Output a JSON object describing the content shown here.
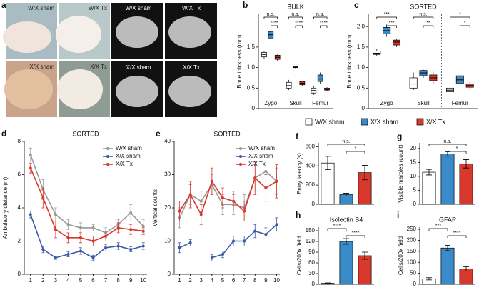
{
  "panel_labels": [
    "a",
    "b",
    "c",
    "d",
    "e",
    "f",
    "g",
    "h",
    "i"
  ],
  "photos": {
    "labels": [
      "W/X sham",
      "W/X Tx",
      "X/X sham",
      "X/X Tx"
    ]
  },
  "ct": {
    "labels": [
      "W/X sham",
      "W/X Tx",
      "X/X sham",
      "X/X Tx"
    ]
  },
  "chart_data": [
    {
      "type": "box",
      "title": "BULK",
      "y_label": "Bone thickness (mm)",
      "categories": [
        "Zygo",
        "Skull",
        "Femur"
      ],
      "ylim": [
        0,
        2.3
      ],
      "yticks": [
        0,
        {
          "value": 0.5,
          "label": "0.5"
        },
        {
          "value": 1,
          "label": "1.0"
        },
        {
          "value": 1.5,
          "label": "1.5"
        }
      ],
      "annotations": [
        "n.s.",
        "****",
        "n.s.",
        "****",
        "n.s.",
        "****"
      ],
      "series": [
        {
          "name": "W/X sham",
          "color": "#ffffff",
          "values": [
            {
              "min": 1.2,
              "q1": 1.26,
              "median": 1.32,
              "q3": 1.37,
              "max": 1.4
            },
            {
              "min": 0.45,
              "q1": 0.5,
              "median": 0.56,
              "q3": 0.64,
              "max": 0.7
            },
            {
              "min": 0.33,
              "q1": 0.38,
              "median": 0.44,
              "q3": 0.5,
              "max": 0.56
            }
          ]
        },
        {
          "name": "X/X sham",
          "color": "#3a8bc9",
          "values": [
            {
              "min": 1.65,
              "q1": 1.72,
              "median": 1.8,
              "q3": 1.88,
              "max": 1.92
            },
            {
              "min": 0.98,
              "q1": 1.0,
              "median": 1.01,
              "q3": 1.03,
              "max": 1.04
            },
            {
              "min": 0.6,
              "q1": 0.66,
              "median": 0.72,
              "q3": 0.82,
              "max": 0.88
            }
          ]
        },
        {
          "name": "X/X Tx",
          "color": "#d9382c",
          "values": [
            {
              "min": 1.15,
              "q1": 1.2,
              "median": 1.25,
              "q3": 1.3,
              "max": 1.32
            },
            {
              "min": 0.55,
              "q1": 0.58,
              "median": 0.62,
              "q3": 0.66,
              "max": 0.68
            },
            {
              "min": 0.43,
              "q1": 0.45,
              "median": 0.47,
              "q3": 0.5,
              "max": 0.52
            }
          ]
        }
      ]
    },
    {
      "type": "box",
      "title": "SORTED",
      "y_label": "Bone thickness (mm)",
      "categories": [
        "Zygo",
        "Skull",
        "Femur"
      ],
      "ylim": [
        0,
        2.3
      ],
      "yticks": [
        0,
        {
          "value": 0.5,
          "label": "0.5"
        },
        {
          "value": 1,
          "label": "1.0"
        },
        {
          "value": 1.5,
          "label": "1.5"
        },
        {
          "value": 2,
          "label": "2.0"
        }
      ],
      "annotations": [
        "***",
        "***",
        "n.s.",
        "**",
        "*",
        "*"
      ],
      "series": [
        {
          "name": "W/X sham",
          "color": "#ffffff",
          "values": [
            {
              "min": 1.28,
              "q1": 1.32,
              "median": 1.35,
              "q3": 1.4,
              "max": 1.45
            },
            {
              "min": 0.45,
              "q1": 0.5,
              "median": 0.6,
              "q3": 0.75,
              "max": 0.88
            },
            {
              "min": 0.38,
              "q1": 0.41,
              "median": 0.45,
              "q3": 0.5,
              "max": 0.55
            }
          ]
        },
        {
          "name": "X/X sham",
          "color": "#3a8bc9",
          "values": [
            {
              "min": 1.75,
              "q1": 1.82,
              "median": 1.9,
              "q3": 1.98,
              "max": 2.05
            },
            {
              "min": 0.75,
              "q1": 0.8,
              "median": 0.87,
              "q3": 0.93,
              "max": 0.95
            },
            {
              "min": 0.55,
              "q1": 0.62,
              "median": 0.7,
              "q3": 0.8,
              "max": 0.88
            }
          ]
        },
        {
          "name": "X/X Tx",
          "color": "#d9382c",
          "values": [
            {
              "min": 1.5,
              "q1": 1.55,
              "median": 1.62,
              "q3": 1.67,
              "max": 1.7
            },
            {
              "min": 0.6,
              "q1": 0.68,
              "median": 0.75,
              "q3": 0.82,
              "max": 0.9
            },
            {
              "min": 0.48,
              "q1": 0.52,
              "median": 0.56,
              "q3": 0.6,
              "max": 0.65
            }
          ]
        }
      ]
    },
    {
      "type": "line",
      "title": "SORTED",
      "y_label": "Ambulatory distance (m)",
      "x": [
        1,
        2,
        3,
        4,
        5,
        6,
        7,
        8,
        9,
        10
      ],
      "xlim": [
        0.5,
        10.3
      ],
      "xticks": [
        1,
        2,
        3,
        4,
        5,
        6,
        7,
        8,
        9,
        10
      ],
      "ylim": [
        0,
        8
      ],
      "yticks": [
        0,
        2,
        4,
        6,
        8
      ],
      "series": [
        {
          "name": "W/X sham",
          "color": "#999999",
          "values": [
            7.2,
            5.1,
            3.6,
            3.0,
            2.8,
            2.8,
            2.5,
            3.0,
            3.7,
            2.9
          ],
          "errors": [
            0.4,
            0.6,
            0.4,
            0.3,
            0.3,
            0.2,
            0.3,
            0.3,
            0.5,
            0.4
          ]
        },
        {
          "name": "X/X sham",
          "color": "#3c5aa6",
          "values": [
            3.6,
            1.5,
            1.0,
            1.2,
            1.4,
            1.0,
            1.6,
            1.7,
            1.5,
            1.7
          ],
          "errors": [
            0.2,
            0.2,
            0.1,
            0.15,
            0.2,
            0.15,
            0.2,
            0.2,
            0.15,
            0.2
          ]
        },
        {
          "name": "X/X Tx",
          "color": "#d9382c",
          "values": [
            6.4,
            4.6,
            2.7,
            2.2,
            2.2,
            2.0,
            2.3,
            2.8,
            2.7,
            2.6
          ],
          "errors": [
            0.3,
            0.6,
            0.5,
            0.3,
            0.3,
            0.3,
            0.3,
            0.3,
            0.3,
            0.2
          ]
        }
      ]
    },
    {
      "type": "line",
      "title": "SORTED",
      "y_label": "Vertical counts",
      "x": [
        1,
        2,
        3,
        4,
        5,
        6,
        7,
        8,
        9,
        10
      ],
      "xlim": [
        0.5,
        10.3
      ],
      "xticks": [
        1,
        2,
        3,
        4,
        5,
        6,
        7,
        8,
        9,
        10
      ],
      "ylim": [
        0,
        40
      ],
      "yticks": [
        0,
        10,
        20,
        30,
        40
      ],
      "series": [
        {
          "name": "W/X sham",
          "color": "#999999",
          "values": [
            17,
            24,
            22,
            27,
            21,
            21,
            20,
            29,
            31,
            28
          ],
          "errors": [
            3,
            3,
            3,
            3,
            3,
            3,
            4,
            4,
            5,
            4
          ]
        },
        {
          "name": "X/X sham",
          "color": "#3c5aa6",
          "values": [
            8,
            9.5,
            null,
            5,
            6,
            10,
            10,
            13,
            12,
            15
          ],
          "errors": [
            1.5,
            1,
            null,
            1,
            1,
            1.5,
            1.5,
            2,
            2,
            2
          ]
        },
        {
          "name": "X/X Tx",
          "color": "#d9382c",
          "values": [
            19,
            24,
            18,
            28,
            23,
            22,
            19,
            29,
            26,
            28
          ],
          "errors": [
            3,
            4,
            3,
            4,
            3,
            3,
            3,
            5,
            4,
            5
          ]
        }
      ]
    },
    {
      "type": "bar",
      "y_label": "Entry latency (s)",
      "ylim": [
        0,
        640
      ],
      "yticks": [
        0,
        200,
        400,
        600
      ],
      "values": [
        430,
        100,
        330
      ],
      "errors": [
        70,
        15,
        75
      ],
      "colors": [
        "#ffffff",
        "#3a8bc9",
        "#d9382c"
      ],
      "annotations": [
        "n.s.",
        "*"
      ]
    },
    {
      "type": "bar",
      "y_label": "Visible marbles (count)",
      "ylim": [
        0,
        22
      ],
      "yticks": [
        0,
        5,
        10,
        15,
        20
      ],
      "values": [
        11.5,
        18,
        14.5
      ],
      "errors": [
        1,
        0.8,
        1.5
      ],
      "colors": [
        "#ffffff",
        "#3a8bc9",
        "#d9382c"
      ],
      "annotations": [
        "n.s.",
        "*"
      ]
    },
    {
      "type": "bar",
      "title": "Isolectin B4",
      "y_label": "Cells/200x field",
      "ylim": [
        0,
        160
      ],
      "yticks": [
        0,
        30,
        60,
        90,
        120,
        150
      ],
      "values": [
        3,
        120,
        80
      ],
      "errors": [
        1,
        8,
        10
      ],
      "colors": [
        "#ffffff",
        "#3a8bc9",
        "#d9382c"
      ],
      "annotations": [
        "****",
        "****"
      ]
    },
    {
      "type": "bar",
      "title": "GFAP",
      "y_label": "Cells/200x field",
      "ylim": [
        0,
        260
      ],
      "yticks": [
        0,
        50,
        100,
        150,
        200,
        250
      ],
      "values": [
        25,
        165,
        70
      ],
      "errors": [
        5,
        12,
        10
      ],
      "colors": [
        "#ffffff",
        "#3a8bc9",
        "#d9382c"
      ],
      "annotations": [
        "***",
        "****"
      ]
    }
  ]
}
